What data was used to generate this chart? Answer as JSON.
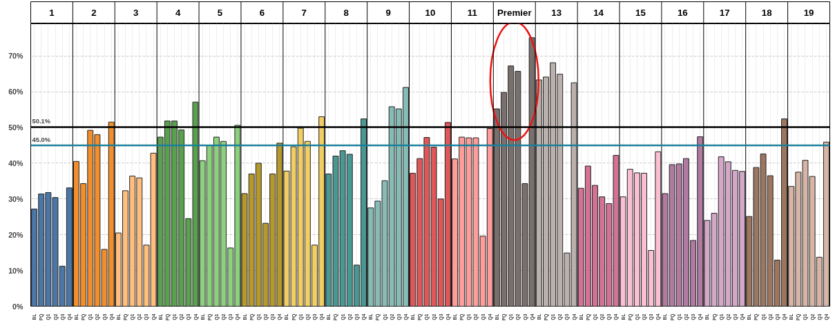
{
  "chart_data": {
    "type": "bar",
    "categories": [
      "BL",
      "PQ",
      "Q1",
      "Q2",
      "Q3",
      "Q4",
      "BL",
      "PQ",
      "Q1",
      "Q2",
      "Q3",
      "Q4",
      "BL",
      "PQ",
      "Q1",
      "Q2",
      "Q3",
      "Q4",
      "BL",
      "PQ",
      "Q1",
      "Q2",
      "Q3",
      "Q4",
      "BL",
      "PQ",
      "Q1",
      "Q2",
      "Q3",
      "Q4",
      "BL",
      "PQ",
      "Q1",
      "Q2",
      "Q3",
      "Q4",
      "BL",
      "PQ",
      "Q1",
      "Q2",
      "Q3",
      "Q4",
      "BL",
      "PQ",
      "Q1",
      "Q2",
      "Q3",
      "Q4",
      "BL",
      "PQ",
      "Q1",
      "Q2",
      "Q3",
      "Q4",
      "BL",
      "PQ",
      "Q1",
      "Q2",
      "Q3",
      "Q4",
      "BL",
      "PQ",
      "Q1",
      "Q2",
      "Q3",
      "Q4",
      "BL",
      "PQ",
      "Q1",
      "Q2",
      "Q3",
      "Q4",
      "BL",
      "PQ",
      "Q1",
      "Q2",
      "Q3",
      "Q4",
      "BL",
      "PQ",
      "Q1",
      "Q2",
      "Q3",
      "Q4",
      "BL",
      "PQ",
      "Q1",
      "Q2",
      "Q3",
      "Q4",
      "BL",
      "PQ",
      "Q1",
      "Q2",
      "Q3",
      "Q4",
      "BL",
      "PQ",
      "Q1",
      "Q2",
      "Q3",
      "Q4",
      "BL",
      "PQ",
      "Q1",
      "Q2",
      "Q3",
      "Q4",
      "BL",
      "PQ",
      "Q1",
      "Q2",
      "Q3",
      "Q4"
    ],
    "values": [
      27.2,
      31.4,
      31.8,
      30.4,
      11.2,
      33.1,
      40.5,
      34.3,
      49.2,
      48.0,
      15.9,
      51.5,
      20.5,
      32.3,
      36.4,
      35.9,
      17.1,
      42.8,
      47.3,
      51.8,
      51.8,
      49.3,
      24.5,
      57.1,
      40.7,
      45.0,
      47.3,
      46.1,
      16.3,
      50.6,
      31.5,
      37.0,
      40.0,
      23.2,
      37.0,
      45.6,
      37.8,
      44.6,
      49.8,
      46.1,
      17.1,
      53.0,
      37.0,
      42.0,
      43.5,
      42.5,
      11.5,
      52.4,
      27.5,
      29.4,
      35.1,
      55.8,
      55.2,
      61.2,
      37.2,
      41.3,
      47.2,
      44.5,
      30.0,
      51.4,
      41.2,
      47.3,
      47.1,
      47.1,
      19.6,
      49.7,
      55.2,
      59.8,
      67.2,
      65.7,
      34.3,
      75.1,
      63.3,
      64.1,
      68.1,
      64.9,
      14.9,
      62.5,
      33.0,
      39.2,
      33.8,
      30.6,
      28.7,
      42.2,
      30.6,
      38.3,
      37.3,
      37.2,
      15.6,
      43.2,
      31.5,
      39.6,
      39.8,
      41.3,
      18.4,
      47.4,
      24.0,
      26.0,
      41.8,
      40.4,
      38.0,
      37.7,
      25.1,
      38.8,
      42.6,
      36.5,
      12.9,
      52.4,
      33.5,
      37.5,
      40.8,
      36.3,
      13.7,
      45.9
    ],
    "colors": [
      "#4a76a8",
      "#4a76a8",
      "#4a76a8",
      "#4a76a8",
      "#4a76a8",
      "#4a76a8",
      "#f28e2b",
      "#f28e2b",
      "#f28e2b",
      "#f28e2b",
      "#f28e2b",
      "#f28e2b",
      "#ffbe7d",
      "#ffbe7d",
      "#ffbe7d",
      "#ffbe7d",
      "#ffbe7d",
      "#ffbe7d",
      "#59a14f",
      "#59a14f",
      "#59a14f",
      "#59a14f",
      "#59a14f",
      "#59a14f",
      "#8cd17d",
      "#8cd17d",
      "#8cd17d",
      "#8cd17d",
      "#8cd17d",
      "#8cd17d",
      "#b6992d",
      "#b6992d",
      "#b6992d",
      "#b6992d",
      "#b6992d",
      "#b6992d",
      "#f1ce63",
      "#f1ce63",
      "#f1ce63",
      "#f1ce63",
      "#f1ce63",
      "#f1ce63",
      "#499894",
      "#499894",
      "#499894",
      "#499894",
      "#499894",
      "#499894",
      "#86bcb6",
      "#86bcb6",
      "#86bcb6",
      "#86bcb6",
      "#86bcb6",
      "#86bcb6",
      "#e15759",
      "#e15759",
      "#e15759",
      "#e15759",
      "#e15759",
      "#e15759",
      "#ff9d9a",
      "#ff9d9a",
      "#ff9d9a",
      "#ff9d9a",
      "#ff9d9a",
      "#ff9d9a",
      "#79706e",
      "#79706e",
      "#79706e",
      "#79706e",
      "#79706e",
      "#79706e",
      "#bab0ac",
      "#bab0ac",
      "#bab0ac",
      "#bab0ac",
      "#bab0ac",
      "#bab0ac",
      "#d37295",
      "#d37295",
      "#d37295",
      "#d37295",
      "#d37295",
      "#d37295",
      "#fabfd2",
      "#fabfd2",
      "#fabfd2",
      "#fabfd2",
      "#fabfd2",
      "#fabfd2",
      "#b07aa1",
      "#b07aa1",
      "#b07aa1",
      "#b07aa1",
      "#b07aa1",
      "#b07aa1",
      "#d4a6c8",
      "#d4a6c8",
      "#d4a6c8",
      "#d4a6c8",
      "#d4a6c8",
      "#d4a6c8",
      "#9d7660",
      "#9d7660",
      "#9d7660",
      "#9d7660",
      "#9d7660",
      "#9d7660",
      "#d7b5a6",
      "#d7b5a6",
      "#d7b5a6",
      "#d7b5a6",
      "#d7b5a6",
      "#d7b5a6"
    ],
    "annotations": [
      "1",
      "2",
      "3",
      "4",
      "5",
      "6",
      "7",
      "8",
      "9",
      "10",
      "11",
      "Premier",
      "13",
      "14",
      "15",
      "16",
      "17",
      "18",
      "19"
    ],
    "ylim": [
      0,
      79
    ],
    "yticks": [
      {
        "value": 0,
        "label": "0%"
      },
      {
        "value": 10,
        "label": "10%"
      },
      {
        "value": 20,
        "label": "20%"
      },
      {
        "value": 30,
        "label": "30%"
      },
      {
        "value": 40,
        "label": "40%"
      },
      {
        "value": 50,
        "label": "50%"
      },
      {
        "value": 60,
        "label": "60%"
      },
      {
        "value": 70,
        "label": "70%"
      }
    ],
    "ref_lines": [
      {
        "axis": "y",
        "value": 50.1,
        "label": "50.1%",
        "color": "#000000"
      },
      {
        "axis": "y",
        "value": 45.0,
        "label": "45.0%",
        "color": "#1a7f9a"
      }
    ],
    "grid": true
  }
}
